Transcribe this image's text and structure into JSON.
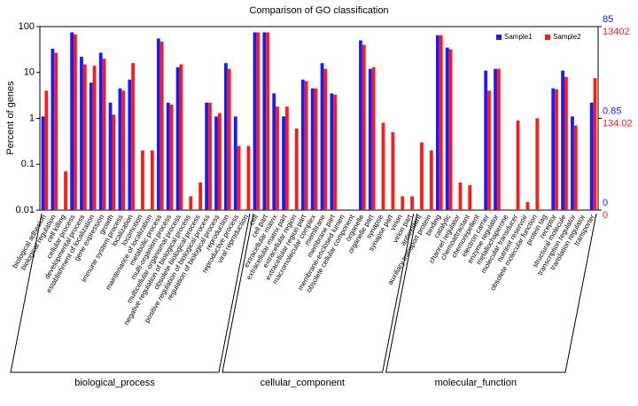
{
  "chart_data": {
    "type": "bar",
    "title": "Comparison of GO classification",
    "ylabel": "Percent of genes",
    "log_scale": true,
    "ylim": [
      0.01,
      100
    ],
    "yticks": [
      0.01,
      0.1,
      1,
      10,
      100
    ],
    "legend": "top-right",
    "groups": [
      {
        "name": "biological_process",
        "categories": [
          "biological adhesion",
          "biological regulation",
          "cell killing",
          "cellular process",
          "developmental process",
          "establishment of localization",
          "gene expression",
          "growth",
          "immune system process",
          "localization",
          "locomotion",
          "maintenance of localization",
          "metabolic process",
          "multi-organism process",
          "multicellular organismal process",
          "negative regulation of biological process",
          "obsolete biological process",
          "positive regulation of biological process",
          "regulation of biological process",
          "reproduction",
          "reproductive process",
          "viral reproduction"
        ]
      },
      {
        "name": "cellular_component",
        "categories": [
          "cell",
          "cell part",
          "extracellular matrix",
          "extracellular matrix part",
          "extracellular region",
          "extracellular region part",
          "macromolecular complex",
          "membrane",
          "membrane part",
          "membrane-enclosed lumen",
          "obsolete cellular component",
          "organelle",
          "organelle part",
          "synapse",
          "synapse part",
          "virion",
          "virion part"
        ]
      },
      {
        "name": "molecular_function",
        "categories": [
          "antioxidant",
          "auxiliary transport protein",
          "binding",
          "catalytic",
          "channel regulator",
          "chemoattractant",
          "chemorepellent",
          "electron carrier",
          "enzyme regulator",
          "metallochaperone",
          "molecular transducer",
          "nutrient reservoir",
          "obsolete molecular function",
          "protein tag",
          "receptor",
          "structural molecule",
          "transcription regulator",
          "translation regulator",
          "transporter"
        ]
      }
    ],
    "series": [
      {
        "name": "Sample1",
        "color": "#1a1aff",
        "values": [
          1.1,
          33,
          null,
          75,
          22,
          6,
          27,
          2.2,
          4.5,
          7,
          null,
          null,
          55,
          2.2,
          13,
          null,
          null,
          2.2,
          1.1,
          16,
          1.1,
          null,
          75,
          75,
          3.5,
          1.1,
          null,
          7,
          4.5,
          16,
          3.5,
          null,
          null,
          50,
          12,
          null,
          null,
          null,
          null,
          null,
          null,
          65,
          35,
          null,
          null,
          null,
          11,
          12,
          null,
          null,
          null,
          null,
          null,
          4.5,
          11,
          1.1,
          null,
          2.2
        ],
        "right_ticks": [
          {
            "value": 100,
            "label": "85"
          },
          {
            "value": 1,
            "label": "0.85"
          },
          {
            "value": 0.01,
            "label": "0"
          }
        ]
      },
      {
        "name": "Sample2",
        "color": "#ff1a1a",
        "values": [
          4,
          27,
          0.07,
          68,
          15,
          14,
          20,
          1.2,
          4,
          16,
          0.2,
          0.2,
          47,
          2,
          15,
          0.02,
          0.04,
          2.2,
          1.3,
          12,
          0.25,
          0.25,
          75,
          75,
          1.8,
          1.8,
          0.6,
          6.5,
          4.5,
          12,
          3.3,
          null,
          null,
          40,
          13,
          0.8,
          0.5,
          0.02,
          0.02,
          0.3,
          0.2,
          65,
          32,
          0.04,
          0.035,
          null,
          4,
          12,
          null,
          0.9,
          0.015,
          1,
          null,
          4.3,
          8,
          0.7,
          null,
          7.5
        ],
        "right_ticks": [
          {
            "value": 100,
            "label": "13402"
          },
          {
            "value": 1,
            "label": "134.02"
          },
          {
            "value": 0.01,
            "label": "0"
          }
        ]
      }
    ]
  }
}
